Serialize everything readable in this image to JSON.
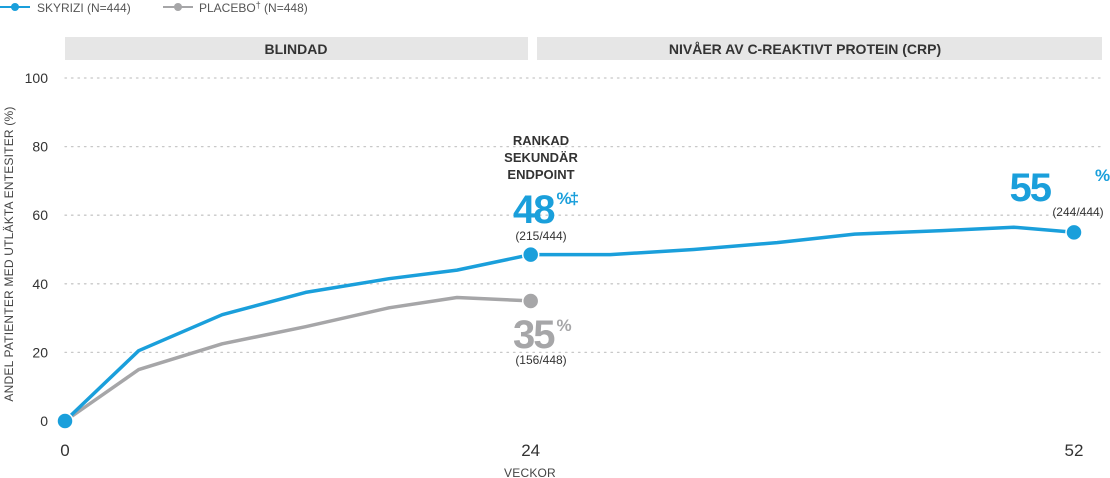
{
  "chart_data": {
    "type": "line",
    "legend": [
      {
        "label": "SKYRIZI (N=444)",
        "color": "#1a9fdb"
      },
      {
        "label": "PLACEBO",
        "sup": "†",
        "tail": " (N=448)",
        "color": "#a6a6a8"
      }
    ],
    "bands": [
      {
        "label": "BLINDAD",
        "from": 0,
        "to": 24
      },
      {
        "label": "NIVÅER AV C-REAKTIVT PROTEIN (CRP)",
        "from": 24,
        "to": 52
      }
    ],
    "ylabel": "ANDEL PATIENTER MED UTLÄKTA ENTESITER (%)",
    "xlabel": "VECKOR",
    "ylim": [
      0,
      100
    ],
    "xlim": [
      0,
      52
    ],
    "yticks": [
      0,
      20,
      40,
      60,
      80,
      100
    ],
    "xticks": [
      0,
      24,
      52
    ],
    "series": [
      {
        "name": "SKYRIZI (N=444)",
        "color": "#1a9fdb",
        "x": [
          0,
          3.8,
          8.1,
          12.4,
          16.7,
          20.2,
          24,
          28.1,
          32.4,
          36.7,
          40.7,
          45.2,
          48.9,
          52
        ],
        "y": [
          0,
          20.5,
          31,
          37.5,
          41.5,
          44,
          48.5,
          48.5,
          50,
          52,
          54.5,
          55.5,
          56.5,
          55
        ]
      },
      {
        "name": "PLACEBO (N=448)",
        "color": "#a6a6a8",
        "x": [
          0,
          3.8,
          8.1,
          12.4,
          16.7,
          20.2,
          24
        ],
        "y": [
          0,
          15,
          22.5,
          27.5,
          33,
          36,
          35
        ]
      }
    ],
    "annotations": {
      "endpoint_lines": [
        "RANKAD",
        "SEKUNDÄR",
        "ENDPOINT"
      ],
      "skyrizi_24": {
        "value": "48",
        "sup": "%‡",
        "fraction": "(215/444)"
      },
      "placebo_24": {
        "value": "35",
        "sup": "%",
        "fraction": "(156/448)"
      },
      "skyrizi_52": {
        "value": "55",
        "sup": "%",
        "fraction": "(244/444)"
      }
    }
  }
}
